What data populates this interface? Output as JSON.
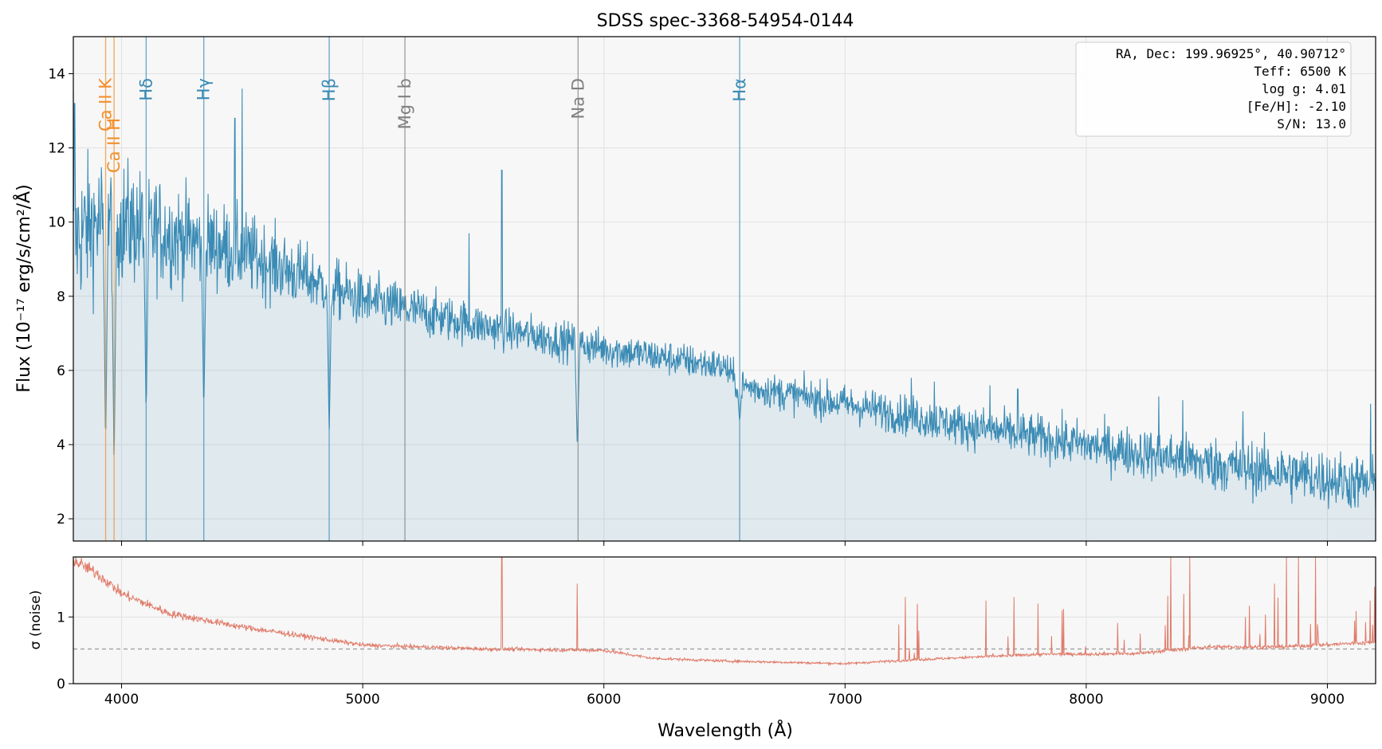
{
  "chart_data": [
    {
      "panel": "top",
      "type": "line",
      "title": "SDSS spec-3368-54954-0144",
      "ylabel": "Flux (10⁻¹⁷ erg/s/cm²/Å)",
      "xlim": [
        3800,
        9200
      ],
      "ylim": [
        1.4,
        15
      ],
      "yticks": [
        2,
        4,
        6,
        8,
        10,
        12,
        14
      ],
      "xticks": [
        4000,
        5000,
        6000,
        7000,
        8000,
        9000
      ],
      "grid": true,
      "fill_under": true,
      "series": [
        {
          "color": "#3a8bb5",
          "continuum": [
            [
              3800,
              9.6
            ],
            [
              3900,
              10.0
            ],
            [
              4000,
              10.0
            ],
            [
              4500,
              9.2
            ],
            [
              5000,
              7.9
            ],
            [
              5500,
              7.2
            ],
            [
              6000,
              6.6
            ],
            [
              6500,
              6.1
            ],
            [
              6560,
              5.6
            ],
            [
              7000,
              5.1
            ],
            [
              7500,
              4.5
            ],
            [
              8000,
              4.0
            ],
            [
              8500,
              3.5
            ],
            [
              9000,
              3.1
            ],
            [
              9200,
              2.9
            ]
          ],
          "noise_scatter": [
            [
              3800,
              1.4
            ],
            [
              4200,
              1.0
            ],
            [
              4800,
              0.6
            ],
            [
              5500,
              0.4
            ],
            [
              6500,
              0.32
            ],
            [
              7200,
              0.38
            ],
            [
              8000,
              0.45
            ],
            [
              8800,
              0.55
            ],
            [
              9200,
              0.55
            ]
          ],
          "absorption_lines": [
            [
              3934,
              3.8
            ],
            [
              3969,
              3.2
            ],
            [
              4102,
              4.7
            ],
            [
              4341,
              4.8
            ],
            [
              4861,
              4.3
            ],
            [
              5890,
              3.9
            ],
            [
              6563,
              4.6
            ]
          ],
          "spikes": [
            [
              3800,
              13.5
            ],
            [
              3805,
              13.2
            ],
            [
              4500,
              13.6
            ],
            [
              4470,
              12.8
            ],
            [
              5577,
              11.4
            ],
            [
              5440,
              9.7
            ],
            [
              7275,
              5.8
            ],
            [
              7370,
              5.7
            ],
            [
              7600,
              5.6
            ],
            [
              7716,
              5.5
            ],
            [
              8300,
              5.3
            ],
            [
              8400,
              5.2
            ],
            [
              8650,
              4.9
            ],
            [
              9180,
              5.1
            ]
          ]
        }
      ],
      "spectral_lines": [
        {
          "label": "Ca II K",
          "x": 3934,
          "color": "#f28e2b"
        },
        {
          "label": "Ca II H",
          "x": 3969,
          "color": "#f28e2b"
        },
        {
          "label": "Hδ",
          "x": 4102,
          "color": "#3a8bb5"
        },
        {
          "label": "Hγ",
          "x": 4341,
          "color": "#3a8bb5"
        },
        {
          "label": "Hβ",
          "x": 4861,
          "color": "#3a8bb5"
        },
        {
          "label": "Mg I b",
          "x": 5175,
          "color": "#808080"
        },
        {
          "label": "Na D",
          "x": 5893,
          "color": "#808080"
        },
        {
          "label": "Hα",
          "x": 6563,
          "color": "#3a8bb5"
        }
      ],
      "info_box": [
        "RA, Dec: 199.96925°, 40.90712°",
        "Teff: 6500 K",
        "log g: 4.01",
        "[Fe/H]: -2.10",
        "S/N: 13.0"
      ],
      "info_box_position": "top-right"
    },
    {
      "panel": "bottom",
      "type": "line",
      "xlabel": "Wavelength (Å)",
      "ylabel": "σ (noise)",
      "xlim": [
        3800,
        9200
      ],
      "ylim": [
        0,
        1.9
      ],
      "yticks": [
        0,
        1
      ],
      "xticks": [
        4000,
        5000,
        6000,
        7000,
        8000,
        9000
      ],
      "xtick_labels": [
        "4000",
        "5000",
        "6000",
        "7000",
        "8000",
        "9000"
      ],
      "grid": true,
      "reference_line": 0.52,
      "series": [
        {
          "color": "#e07b6a",
          "baseline": [
            [
              3800,
              1.85
            ],
            [
              3900,
              1.65
            ],
            [
              4000,
              1.35
            ],
            [
              4200,
              1.05
            ],
            [
              4500,
              0.85
            ],
            [
              5000,
              0.58
            ],
            [
              5500,
              0.52
            ],
            [
              6000,
              0.5
            ],
            [
              6200,
              0.38
            ],
            [
              6500,
              0.34
            ],
            [
              7000,
              0.3
            ],
            [
              7300,
              0.36
            ],
            [
              7800,
              0.44
            ],
            [
              8200,
              0.45
            ],
            [
              8500,
              0.55
            ],
            [
              8800,
              0.55
            ],
            [
              9200,
              0.62
            ]
          ],
          "spikes": [
            [
              5577,
              1.9
            ],
            [
              5890,
              1.5
            ],
            [
              7250,
              1.3
            ],
            [
              7300,
              1.2
            ],
            [
              7700,
              1.3
            ],
            [
              7800,
              1.2
            ],
            [
              7900,
              1.1
            ],
            [
              8350,
              1.9
            ],
            [
              8430,
              1.9
            ],
            [
              8660,
              1.0
            ],
            [
              8780,
              1.5
            ],
            [
              8830,
              1.9
            ],
            [
              8880,
              1.9
            ],
            [
              8950,
              1.9
            ],
            [
              9200,
              1.0
            ]
          ]
        }
      ]
    }
  ]
}
